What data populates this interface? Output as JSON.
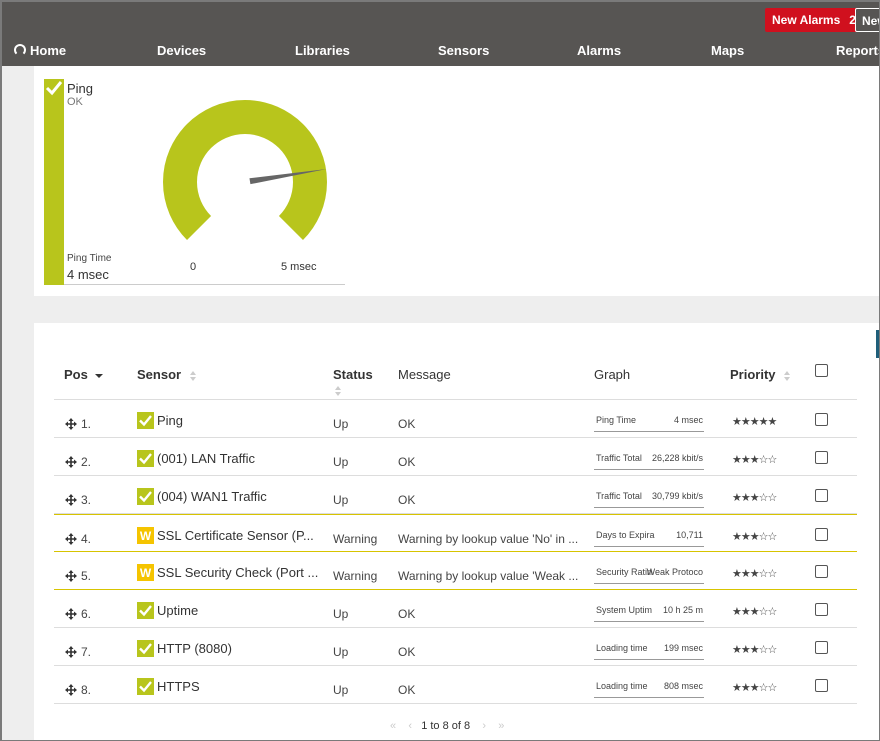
{
  "header": {
    "alarm_button_label": "New Alarms",
    "alarm_count": "2",
    "new_button_label": "New",
    "nav": [
      "Home",
      "Devices",
      "Libraries",
      "Sensors",
      "Alarms",
      "Maps",
      "Reports"
    ]
  },
  "gauge": {
    "name": "Ping",
    "status": "OK",
    "channel_label": "Ping Time",
    "channel_value": "4 msec",
    "min_label": "0",
    "max_label": "5 msec",
    "value": 4,
    "max": 5,
    "color": "#b8c51c"
  },
  "table": {
    "headers": {
      "pos": "Pos",
      "sensor": "Sensor",
      "status": "Status",
      "message": "Message",
      "graph": "Graph",
      "priority": "Priority"
    },
    "rows": [
      {
        "pos": "1.",
        "sensor": "Ping",
        "state": "up",
        "status": "Up",
        "message": "OK",
        "graph_label": "Ping Time",
        "graph_value": "4 msec",
        "stars": "★★★★★"
      },
      {
        "pos": "2.",
        "sensor": "(001) LAN Traffic",
        "state": "up",
        "status": "Up",
        "message": "OK",
        "graph_label": "Traffic Total",
        "graph_value": "26,228 kbit/s",
        "stars": "★★★☆☆"
      },
      {
        "pos": "3.",
        "sensor": "(004) WAN1 Traffic",
        "state": "up",
        "status": "Up",
        "message": "OK",
        "graph_label": "Traffic Total",
        "graph_value": "30,799 kbit/s",
        "stars": "★★★☆☆"
      },
      {
        "pos": "4.",
        "sensor": "SSL Certificate Sensor (P...",
        "state": "warning",
        "status": "Warning",
        "message": "Warning by lookup value 'No' in ...",
        "graph_label": "Days to Expira",
        "graph_value": "10,711",
        "stars": "★★★☆☆"
      },
      {
        "pos": "5.",
        "sensor": "SSL Security Check (Port ...",
        "state": "warning",
        "status": "Warning",
        "message": "Warning by lookup value 'Weak ...",
        "graph_label": "Security Ratin",
        "graph_value": "Weak Protoco",
        "stars": "★★★☆☆"
      },
      {
        "pos": "6.",
        "sensor": "Uptime",
        "state": "up",
        "status": "Up",
        "message": "OK",
        "graph_label": "System Uptim",
        "graph_value": "10 h 25 m",
        "stars": "★★★☆☆"
      },
      {
        "pos": "7.",
        "sensor": "HTTP (8080)",
        "state": "up",
        "status": "Up",
        "message": "OK",
        "graph_label": "Loading time",
        "graph_value": "199 msec",
        "stars": "★★★☆☆"
      },
      {
        "pos": "8.",
        "sensor": "HTTPS",
        "state": "up",
        "status": "Up",
        "message": "OK",
        "graph_label": "Loading time",
        "graph_value": "808 msec",
        "stars": "★★★☆☆"
      }
    ],
    "pager_text": "1 to 8 of 8"
  },
  "colors": {
    "up": "#b8c51c",
    "warning": "#f5c400",
    "alarm": "#d0101e",
    "topbar": "#575553"
  }
}
